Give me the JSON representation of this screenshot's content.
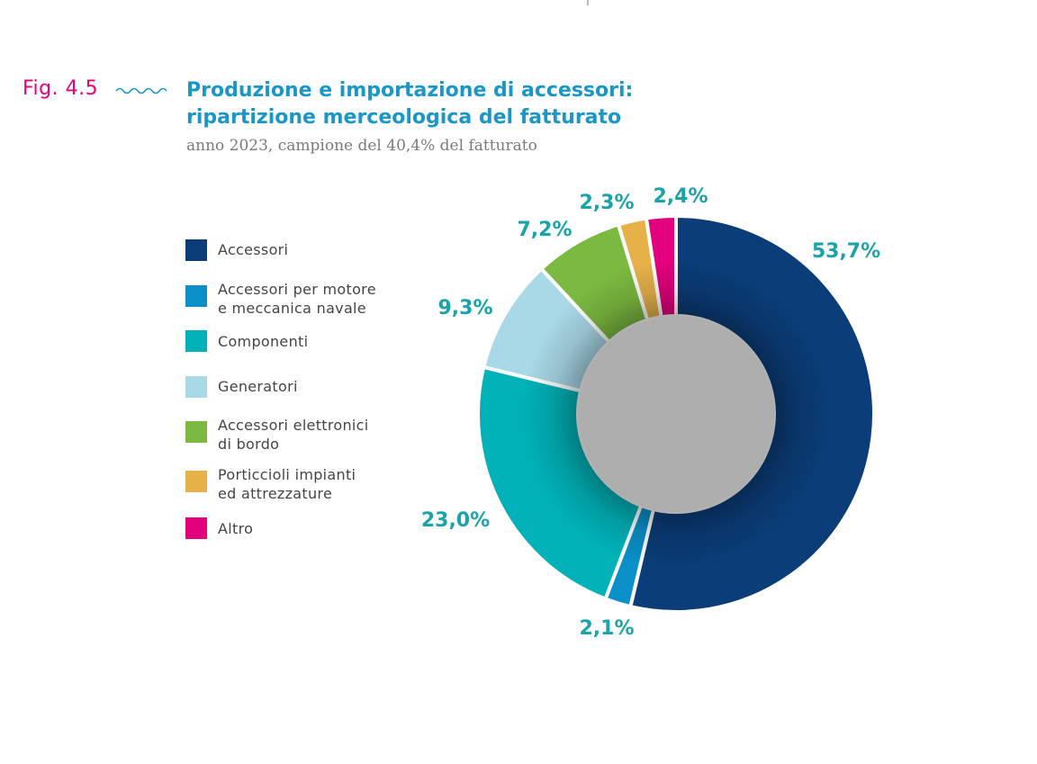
{
  "figure": {
    "label": "Fig. 4.5",
    "title_line1": "Produzione e importazione di accessori:",
    "title_line2": "ripartizione merceologica del fatturato",
    "subtitle": "anno 2023, campione del 40,4% del fatturato"
  },
  "colors": {
    "accent_pink": "#e5007e",
    "title_blue": "#1b97c6",
    "label_teal": "#1aa3a8"
  },
  "chart_data": {
    "type": "pie",
    "variant": "donut",
    "title": "Produzione e importazione di accessori: ripartizione merceologica del fatturato",
    "subtitle": "anno 2023, campione del 40,4% del fatturato",
    "legend_position": "left",
    "slices": [
      {
        "label": "Accessori",
        "legend_lines": [
          "Accessori"
        ],
        "value": 53.7,
        "display": "53,7%",
        "color": "#0b3d78"
      },
      {
        "label": "Accessori per motore e meccanica navale",
        "legend_lines": [
          "Accessori per motore",
          "e meccanica navale"
        ],
        "value": 2.1,
        "display": "2,1%",
        "color": "#0a8fc8"
      },
      {
        "label": "Componenti",
        "legend_lines": [
          "Componenti"
        ],
        "value": 23.0,
        "display": "23,0%",
        "color": "#00b2b8"
      },
      {
        "label": "Generatori",
        "legend_lines": [
          "Generatori"
        ],
        "value": 9.3,
        "display": "9,3%",
        "color": "#a9d8e6"
      },
      {
        "label": "Accessori elettronici di bordo",
        "legend_lines": [
          "Accessori elettronici",
          "di bordo"
        ],
        "value": 7.2,
        "display": "7,2%",
        "color": "#7cb940"
      },
      {
        "label": "Porticcioli impianti ed attrezzature",
        "legend_lines": [
          "Porticcioli impianti",
          "ed attrezzature"
        ],
        "value": 2.3,
        "display": "2,3%",
        "color": "#e7b14a"
      },
      {
        "label": "Altro",
        "legend_lines": [
          "Altro"
        ],
        "value": 2.4,
        "display": "2,4%",
        "color": "#e3007d"
      }
    ]
  }
}
